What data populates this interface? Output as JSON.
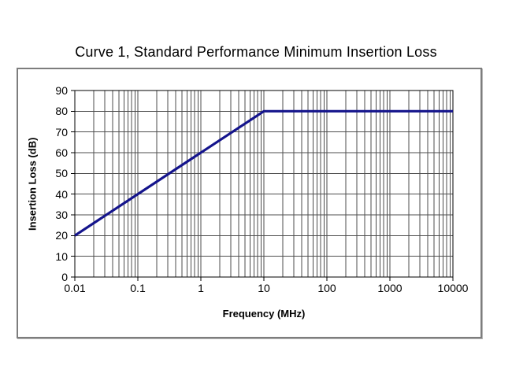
{
  "chart_data": {
    "type": "line",
    "title": "Curve 1, Standard Performance Minimum Insertion Loss",
    "xlabel": "Frequency (MHz)",
    "ylabel": "Insertion Loss (dB)",
    "x_scale": "log",
    "xlim": [
      0.01,
      10000
    ],
    "ylim": [
      0,
      90
    ],
    "xticks": [
      0.01,
      0.1,
      1,
      10,
      100,
      1000,
      10000
    ],
    "yticks": [
      0,
      10,
      20,
      30,
      40,
      50,
      60,
      70,
      80,
      90
    ],
    "grid": "horizontal-major + vertical-log-minor",
    "legend_position": "none",
    "series": [
      {
        "name": "Curve 1",
        "points": [
          [
            0.01,
            20
          ],
          [
            10,
            80
          ],
          [
            10000,
            80
          ]
        ],
        "slope_note": "20 dB per decade from 0.01 MHz to 10 MHz, then constant 80 dB"
      }
    ],
    "colors": {
      "line": "#14148c",
      "grid": "#4d4d4d",
      "axis": "#000000",
      "frame_border": "#7d7d7d",
      "background": "#ffffff"
    }
  }
}
